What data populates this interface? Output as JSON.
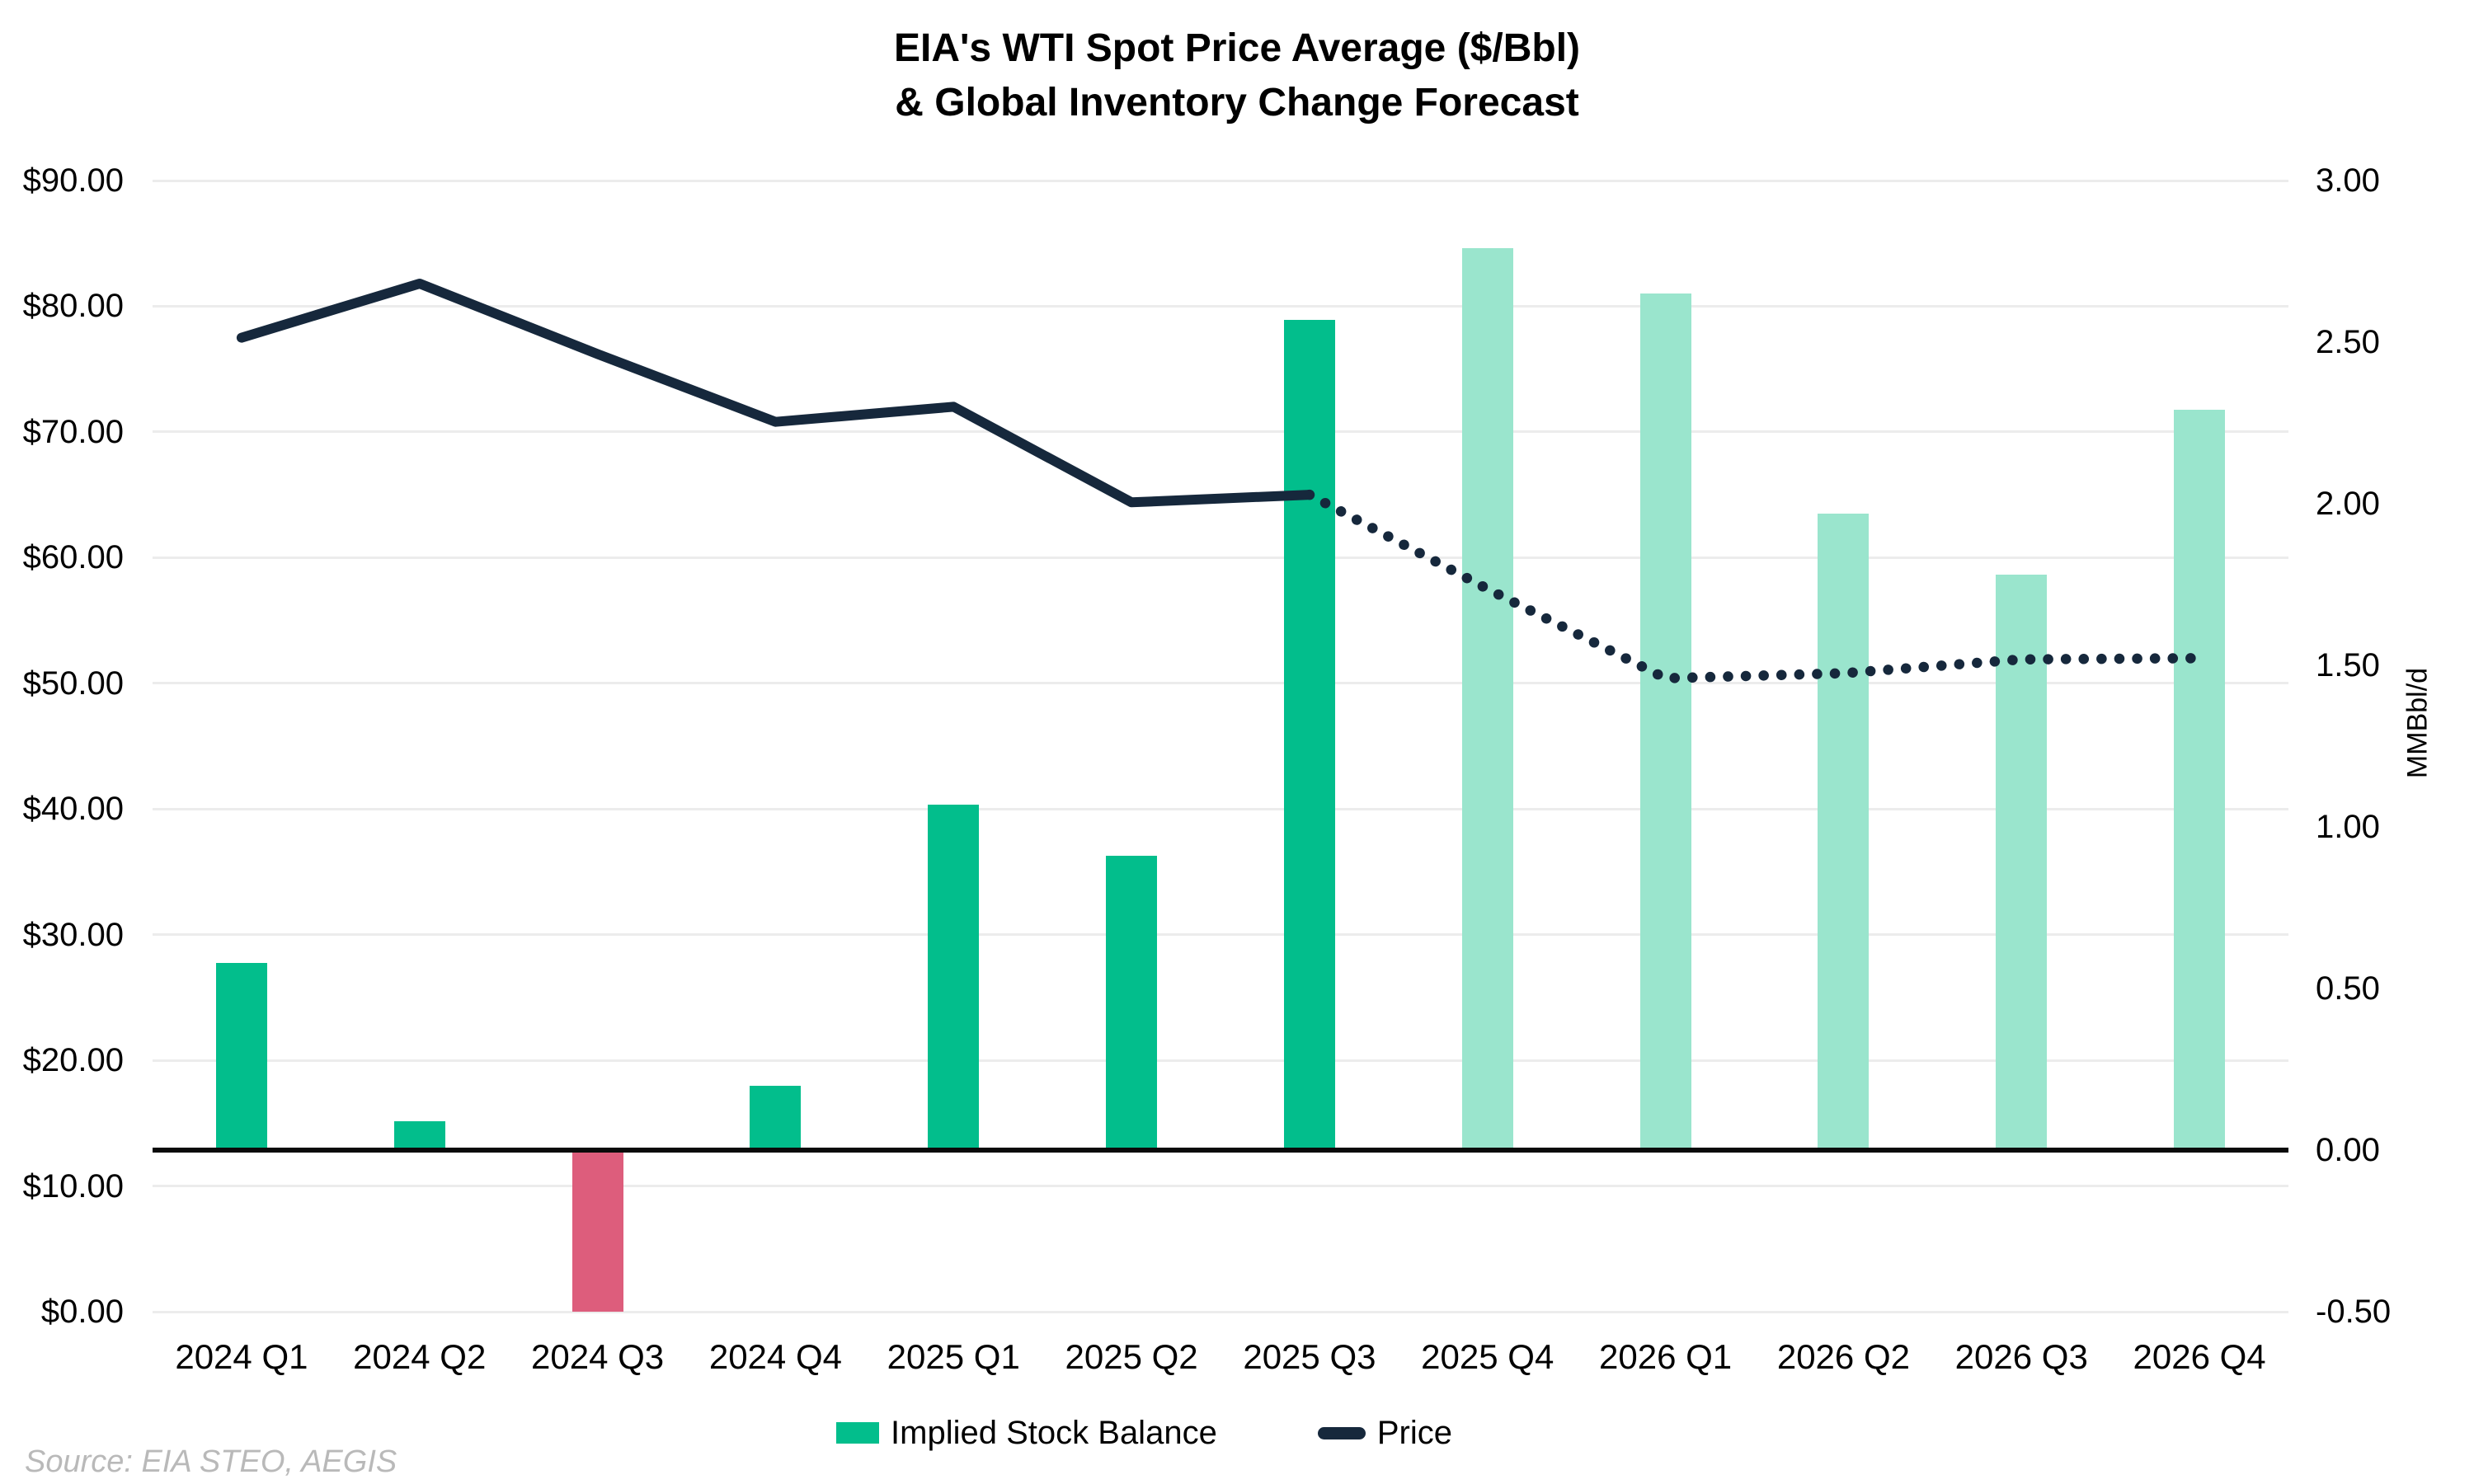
{
  "title": {
    "line1": "EIA's WTI Spot Price Average ($/Bbl)",
    "line2": "& Global Inventory Change Forecast"
  },
  "legend": {
    "bar_label": "Implied Stock Balance",
    "price_label": "Price"
  },
  "source": "Source: EIA STEO, AEGIS",
  "colors": {
    "bar_actual": "#02be8c",
    "bar_forecast": "#9ae5cd",
    "bar_negative": "#dd5d7c",
    "price_line": "#16283c",
    "gridline": "#ececec",
    "zero_line": "#0a0a0a",
    "title_text": "#000000",
    "source_text": "#b9b9b9"
  },
  "chart_data": {
    "type": "bar",
    "subtype": "combo-bar-line-dual-axis",
    "title": "EIA's WTI Spot Price Average ($/Bbl) & Global Inventory Change Forecast",
    "categories": [
      "2024 Q1",
      "2024 Q2",
      "2024 Q3",
      "2024 Q4",
      "2025 Q1",
      "2025 Q2",
      "2025 Q3",
      "2025 Q4",
      "2026 Q1",
      "2026 Q2",
      "2026 Q3",
      "2026 Q4"
    ],
    "series": [
      {
        "name": "Implied Stock Balance",
        "type": "bar",
        "axis": "right",
        "values": [
          0.58,
          0.09,
          -0.5,
          0.2,
          1.07,
          0.91,
          2.57,
          2.79,
          2.65,
          1.97,
          1.78,
          2.29
        ],
        "forecast_start_index": 7,
        "color_actual": "#02be8c",
        "color_forecast": "#9ae5cd",
        "color_negative": "#dd5d7c"
      },
      {
        "name": "Price",
        "type": "line",
        "axis": "left",
        "values": [
          77.5,
          81.8,
          76.2,
          70.8,
          72.0,
          64.4,
          65.0,
          57.5,
          50.4,
          50.8,
          51.9,
          52.0
        ],
        "solid_through_index": 6,
        "color": "#16283c"
      }
    ],
    "left_axis": {
      "min": 0,
      "max": 90,
      "step": 10,
      "ticks": [
        "$90.00",
        "$80.00",
        "$70.00",
        "$60.00",
        "$50.00",
        "$40.00",
        "$30.00",
        "$20.00",
        "$10.00",
        "$0.00"
      ]
    },
    "right_axis": {
      "min": -0.5,
      "max": 3.0,
      "step": 0.5,
      "label": "MMBbl/d",
      "ticks": [
        "3.00",
        "2.50",
        "2.00",
        "1.50",
        "1.00",
        "0.50",
        "0.00",
        "-0.50"
      ]
    },
    "grid": true,
    "zero_line_axis": "right",
    "legend_position": "bottom"
  }
}
